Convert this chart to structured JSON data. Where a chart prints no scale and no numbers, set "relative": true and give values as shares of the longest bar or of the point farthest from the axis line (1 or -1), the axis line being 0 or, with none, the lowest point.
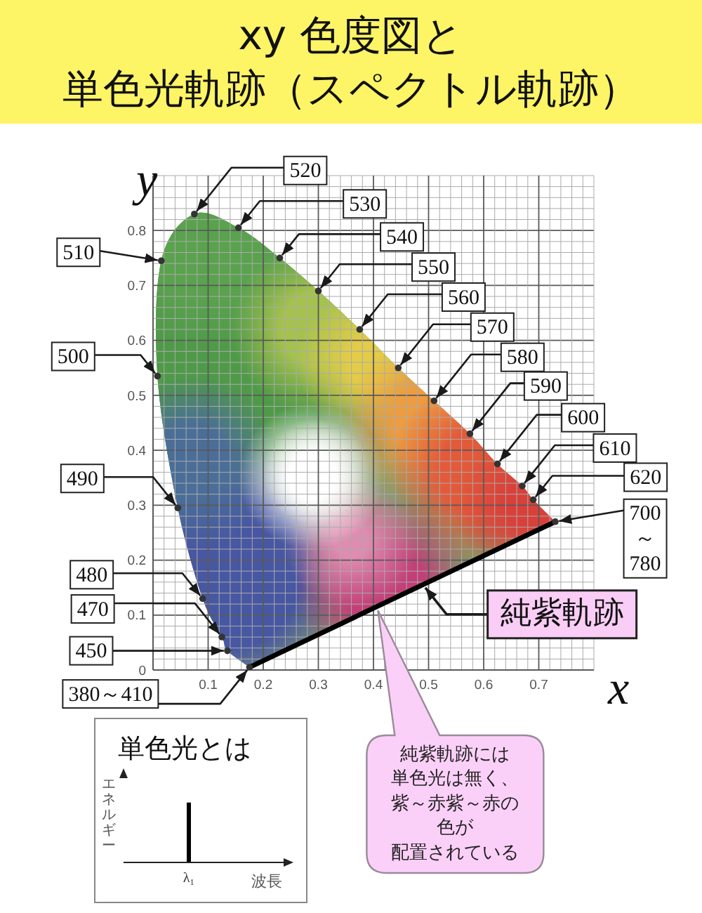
{
  "chart_data": [
    {
      "type": "scatter",
      "title": "xy 色度図と",
      "subtitle": "単色光軌跡（スペクトル軌跡）",
      "xlabel": "x",
      "ylabel": "y",
      "xlim": [
        0,
        0.8
      ],
      "ylim": [
        0,
        0.9
      ],
      "xticks": [
        {
          "value": 0,
          "label": null
        },
        {
          "value": 0.02,
          "label": null
        },
        {
          "value": 0.04,
          "label": null
        },
        {
          "value": 0.06,
          "label": null
        },
        {
          "value": 0.08,
          "label": null
        },
        0.1,
        {
          "value": 0.12,
          "label": null
        },
        {
          "value": 0.14,
          "label": null
        },
        {
          "value": 0.16,
          "label": null
        },
        {
          "value": 0.18,
          "label": null
        },
        0.2,
        {
          "value": 0.22,
          "label": null
        },
        {
          "value": 0.24,
          "label": null
        },
        {
          "value": 0.26,
          "label": null
        },
        {
          "value": 0.28,
          "label": null
        },
        0.3,
        {
          "value": 0.32,
          "label": null
        },
        {
          "value": 0.34,
          "label": null
        },
        {
          "value": 0.36,
          "label": null
        },
        {
          "value": 0.38,
          "label": null
        },
        0.4,
        {
          "value": 0.42,
          "label": null
        },
        {
          "value": 0.44,
          "label": null
        },
        {
          "value": 0.46,
          "label": null
        },
        {
          "value": 0.48,
          "label": null
        },
        0.5,
        {
          "value": 0.52,
          "label": null
        },
        {
          "value": 0.54,
          "label": null
        },
        {
          "value": 0.56,
          "label": null
        },
        {
          "value": 0.58,
          "label": null
        },
        0.6,
        {
          "value": 0.62,
          "label": null
        },
        {
          "value": 0.64,
          "label": null
        },
        {
          "value": 0.66,
          "label": null
        },
        {
          "value": 0.68,
          "label": null
        },
        0.7,
        {
          "value": 0.72,
          "label": null
        },
        {
          "value": 0.74,
          "label": null
        },
        {
          "value": 0.76,
          "label": null
        },
        {
          "value": 0.78,
          "label": null
        },
        {
          "value": 0.8,
          "label": null
        }
      ],
      "yticks": [
        0,
        {
          "value": 0.02,
          "label": null
        },
        {
          "value": 0.04,
          "label": null
        },
        {
          "value": 0.06,
          "label": null
        },
        {
          "value": 0.08,
          "label": null
        },
        0.1,
        {
          "value": 0.12,
          "label": null
        },
        {
          "value": 0.14,
          "label": null
        },
        {
          "value": 0.16,
          "label": null
        },
        {
          "value": 0.18,
          "label": null
        },
        0.2,
        {
          "value": 0.22,
          "label": null
        },
        {
          "value": 0.24,
          "label": null
        },
        {
          "value": 0.26,
          "label": null
        },
        {
          "value": 0.28,
          "label": null
        },
        0.3,
        {
          "value": 0.32,
          "label": null
        },
        {
          "value": 0.34,
          "label": null
        },
        {
          "value": 0.36,
          "label": null
        },
        {
          "value": 0.38,
          "label": null
        },
        0.4,
        {
          "value": 0.42,
          "label": null
        },
        {
          "value": 0.44,
          "label": null
        },
        {
          "value": 0.46,
          "label": null
        },
        {
          "value": 0.48,
          "label": null
        },
        0.5,
        {
          "value": 0.52,
          "label": null
        },
        {
          "value": 0.54,
          "label": null
        },
        {
          "value": 0.56,
          "label": null
        },
        {
          "value": 0.58,
          "label": null
        },
        0.6,
        {
          "value": 0.62,
          "label": null
        },
        {
          "value": 0.64,
          "label": null
        },
        {
          "value": 0.66,
          "label": null
        },
        {
          "value": 0.68,
          "label": null
        },
        0.7,
        {
          "value": 0.72,
          "label": null
        },
        {
          "value": 0.74,
          "label": null
        },
        {
          "value": 0.76,
          "label": null
        },
        {
          "value": 0.78,
          "label": null
        },
        0.8,
        {
          "value": 0.82,
          "label": null
        },
        {
          "value": 0.84,
          "label": null
        },
        {
          "value": 0.86,
          "label": null
        },
        {
          "value": 0.88,
          "label": null
        },
        {
          "value": 0.9,
          "label": null
        }
      ],
      "grid": true,
      "series": [
        {
          "type": "scatter",
          "color": "#333333",
          "marker": "circle",
          "x": [
            0.175,
            0.135,
            0.125,
            0.09,
            0.045,
            0.008,
            0.015,
            0.075,
            0.155,
            0.23,
            0.3,
            0.375,
            0.445,
            0.51,
            0.575,
            0.625,
            0.67,
            0.69,
            0.73
          ],
          "values": [
            0.005,
            0.035,
            0.06,
            0.13,
            0.295,
            0.535,
            0.745,
            0.83,
            0.805,
            0.75,
            0.69,
            0.62,
            0.55,
            0.49,
            0.43,
            0.375,
            0.335,
            0.31,
            0.27
          ]
        },
        {
          "type": "line",
          "color": "#000000",
          "marker": "none",
          "x": [
            0.175,
            0.73
          ],
          "values": [
            0.005,
            0.27
          ]
        }
      ],
      "annotations": [
        {
          "text": "380～410",
          "x": 0.175,
          "y": 0.005
        },
        {
          "text": "450",
          "x": 0.135,
          "y": 0.035
        },
        {
          "text": "470",
          "x": 0.125,
          "y": 0.06
        },
        {
          "text": "480",
          "x": 0.09,
          "y": 0.13
        },
        {
          "text": "490",
          "x": 0.045,
          "y": 0.295
        },
        {
          "text": "500",
          "x": 0.008,
          "y": 0.535
        },
        {
          "text": "510",
          "x": 0.015,
          "y": 0.745
        },
        {
          "text": "520",
          "x": 0.075,
          "y": 0.83
        },
        {
          "text": "530",
          "x": 0.155,
          "y": 0.805
        },
        {
          "text": "540",
          "x": 0.23,
          "y": 0.75
        },
        {
          "text": "550",
          "x": 0.3,
          "y": 0.69
        },
        {
          "text": "560",
          "x": 0.375,
          "y": 0.62
        },
        {
          "text": "570",
          "x": 0.445,
          "y": 0.55
        },
        {
          "text": "580",
          "x": 0.51,
          "y": 0.49
        },
        {
          "text": "590",
          "x": 0.575,
          "y": 0.43
        },
        {
          "text": "600",
          "x": 0.625,
          "y": 0.375
        },
        {
          "text": "610",
          "x": 0.67,
          "y": 0.335
        },
        {
          "text": "620",
          "x": 0.69,
          "y": 0.31
        },
        {
          "text": "700\n～\n780",
          "x": 0.73,
          "y": 0.27
        },
        {
          "text": "純紫軌跡",
          "x": 0.49,
          "y": 0.155
        },
        "純紫軌跡には単色光は無く、紫～赤紫～赤の色が配置されている"
      ]
    },
    {
      "type": "bar",
      "title": "単色光とは",
      "xlabel": "波長",
      "ylabel": "エネルギー",
      "categories": [
        "λ₁"
      ],
      "values": [
        1
      ],
      "relative": true,
      "color": "#000000"
    }
  ]
}
